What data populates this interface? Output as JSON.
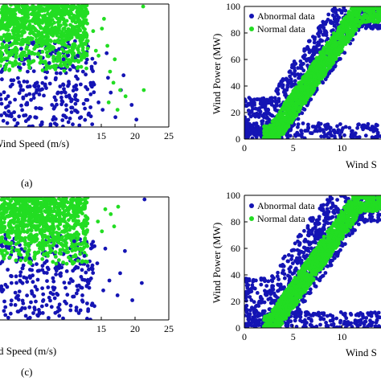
{
  "chart_data": [
    {
      "panel": "(a)",
      "type": "scatter",
      "xlabel": "Wind Speed (m/s)",
      "ylabel": "",
      "xlim": [
        0,
        25
      ],
      "ylim": [
        0,
        100
      ],
      "xticks": [
        "15",
        "20",
        "25"
      ],
      "yticks": [],
      "legend": null,
      "series": [
        {
          "color": "#1414b4",
          "x": [
            0.5,
            2.1,
            3.4,
            4.6,
            5.2,
            6.8,
            7.7,
            8.9,
            9.4,
            10.6,
            11.2,
            12.3,
            13.1,
            13.8,
            14.6,
            15.2,
            16.4,
            17.1,
            18.3,
            19.5,
            20.2,
            1.2,
            3.0,
            6.1,
            8.3,
            10.2,
            12.0,
            14.1,
            16.0,
            11.5,
            9.1,
            7.3,
            5.5,
            13.4,
            15.8,
            4.1,
            2.6,
            17.9
          ],
          "y": [
            5,
            12,
            30,
            22,
            8,
            40,
            18,
            33,
            55,
            12,
            26,
            45,
            10,
            36,
            20,
            14,
            28,
            8,
            42,
            18,
            6,
            25,
            48,
            15,
            62,
            35,
            8,
            52,
            40,
            58,
            24,
            52,
            36,
            16,
            60,
            45,
            3,
            30
          ]
        },
        {
          "color": "#22dd22",
          "x": [
            13.0,
            14.2,
            15.1,
            16.3,
            17.0,
            17.8,
            16.1,
            15.4,
            18.6,
            21.2,
            21.3,
            14.6,
            13.8,
            16.8,
            15.9,
            17.4
          ],
          "y": [
            70,
            62,
            80,
            45,
            55,
            30,
            20,
            88,
            25,
            98,
            30,
            58,
            78,
            36,
            66,
            14
          ]
        }
      ]
    },
    {
      "panel": "",
      "type": "scatter",
      "xlabel": "Wind S",
      "ylabel": "Wind Power (MW)",
      "xlim": [
        0,
        14
      ],
      "ylim": [
        0,
        100
      ],
      "xticks": [
        "0",
        "5",
        "10"
      ],
      "yticks": [
        "0",
        "20",
        "40",
        "60",
        "80",
        "100"
      ],
      "legend": [
        "Abnormal data",
        "Normal data"
      ],
      "series": [
        {
          "name": "Abnormal data",
          "color": "#1414b4"
        },
        {
          "name": "Normal data",
          "color": "#22dd22"
        }
      ]
    },
    {
      "panel": "(c)",
      "type": "scatter",
      "xlabel": "d Speed (m/s)",
      "ylabel": "",
      "xlim": [
        0,
        25
      ],
      "ylim": [
        0,
        100
      ],
      "xticks": [
        "15",
        "20",
        "25"
      ],
      "yticks": [],
      "legend": null,
      "series": [
        {
          "color": "#1414b4",
          "x": [
            0.8,
            2.4,
            3.9,
            5.1,
            6.3,
            7.5,
            8.4,
            9.6,
            10.8,
            11.7,
            12.5,
            13.6,
            14.4,
            15.3,
            16.2,
            17.4,
            18.5,
            19.6,
            21.0,
            21.4,
            1.7,
            4.4,
            6.9,
            9.0,
            11.0,
            13.0,
            15.6,
            17.8,
            12.2,
            8.1,
            5.8,
            3.1
          ],
          "y": [
            4,
            18,
            34,
            10,
            44,
            22,
            60,
            15,
            40,
            28,
            52,
            12,
            46,
            24,
            32,
            20,
            56,
            16,
            30,
            98,
            30,
            50,
            12,
            38,
            64,
            44,
            58,
            38,
            20,
            26,
            40,
            8
          ]
        },
        {
          "color": "#22dd22",
          "x": [
            14.5,
            15.6,
            16.4,
            17.5,
            16.9,
            15.1
          ],
          "y": [
            80,
            90,
            86,
            92,
            76,
            72
          ]
        }
      ]
    },
    {
      "panel": "",
      "type": "scatter",
      "xlabel": "Wind S",
      "ylabel": "Wind Power (MW)",
      "xlim": [
        0,
        14
      ],
      "ylim": [
        0,
        100
      ],
      "xticks": [
        "0",
        "5",
        "10"
      ],
      "yticks": [
        "0",
        "20",
        "40",
        "60",
        "80",
        "100"
      ],
      "legend": [
        "Abnormal data",
        "Normal data"
      ],
      "series": [
        {
          "name": "Abnormal data",
          "color": "#1414b4"
        },
        {
          "name": "Normal data",
          "color": "#22dd22"
        }
      ]
    }
  ]
}
